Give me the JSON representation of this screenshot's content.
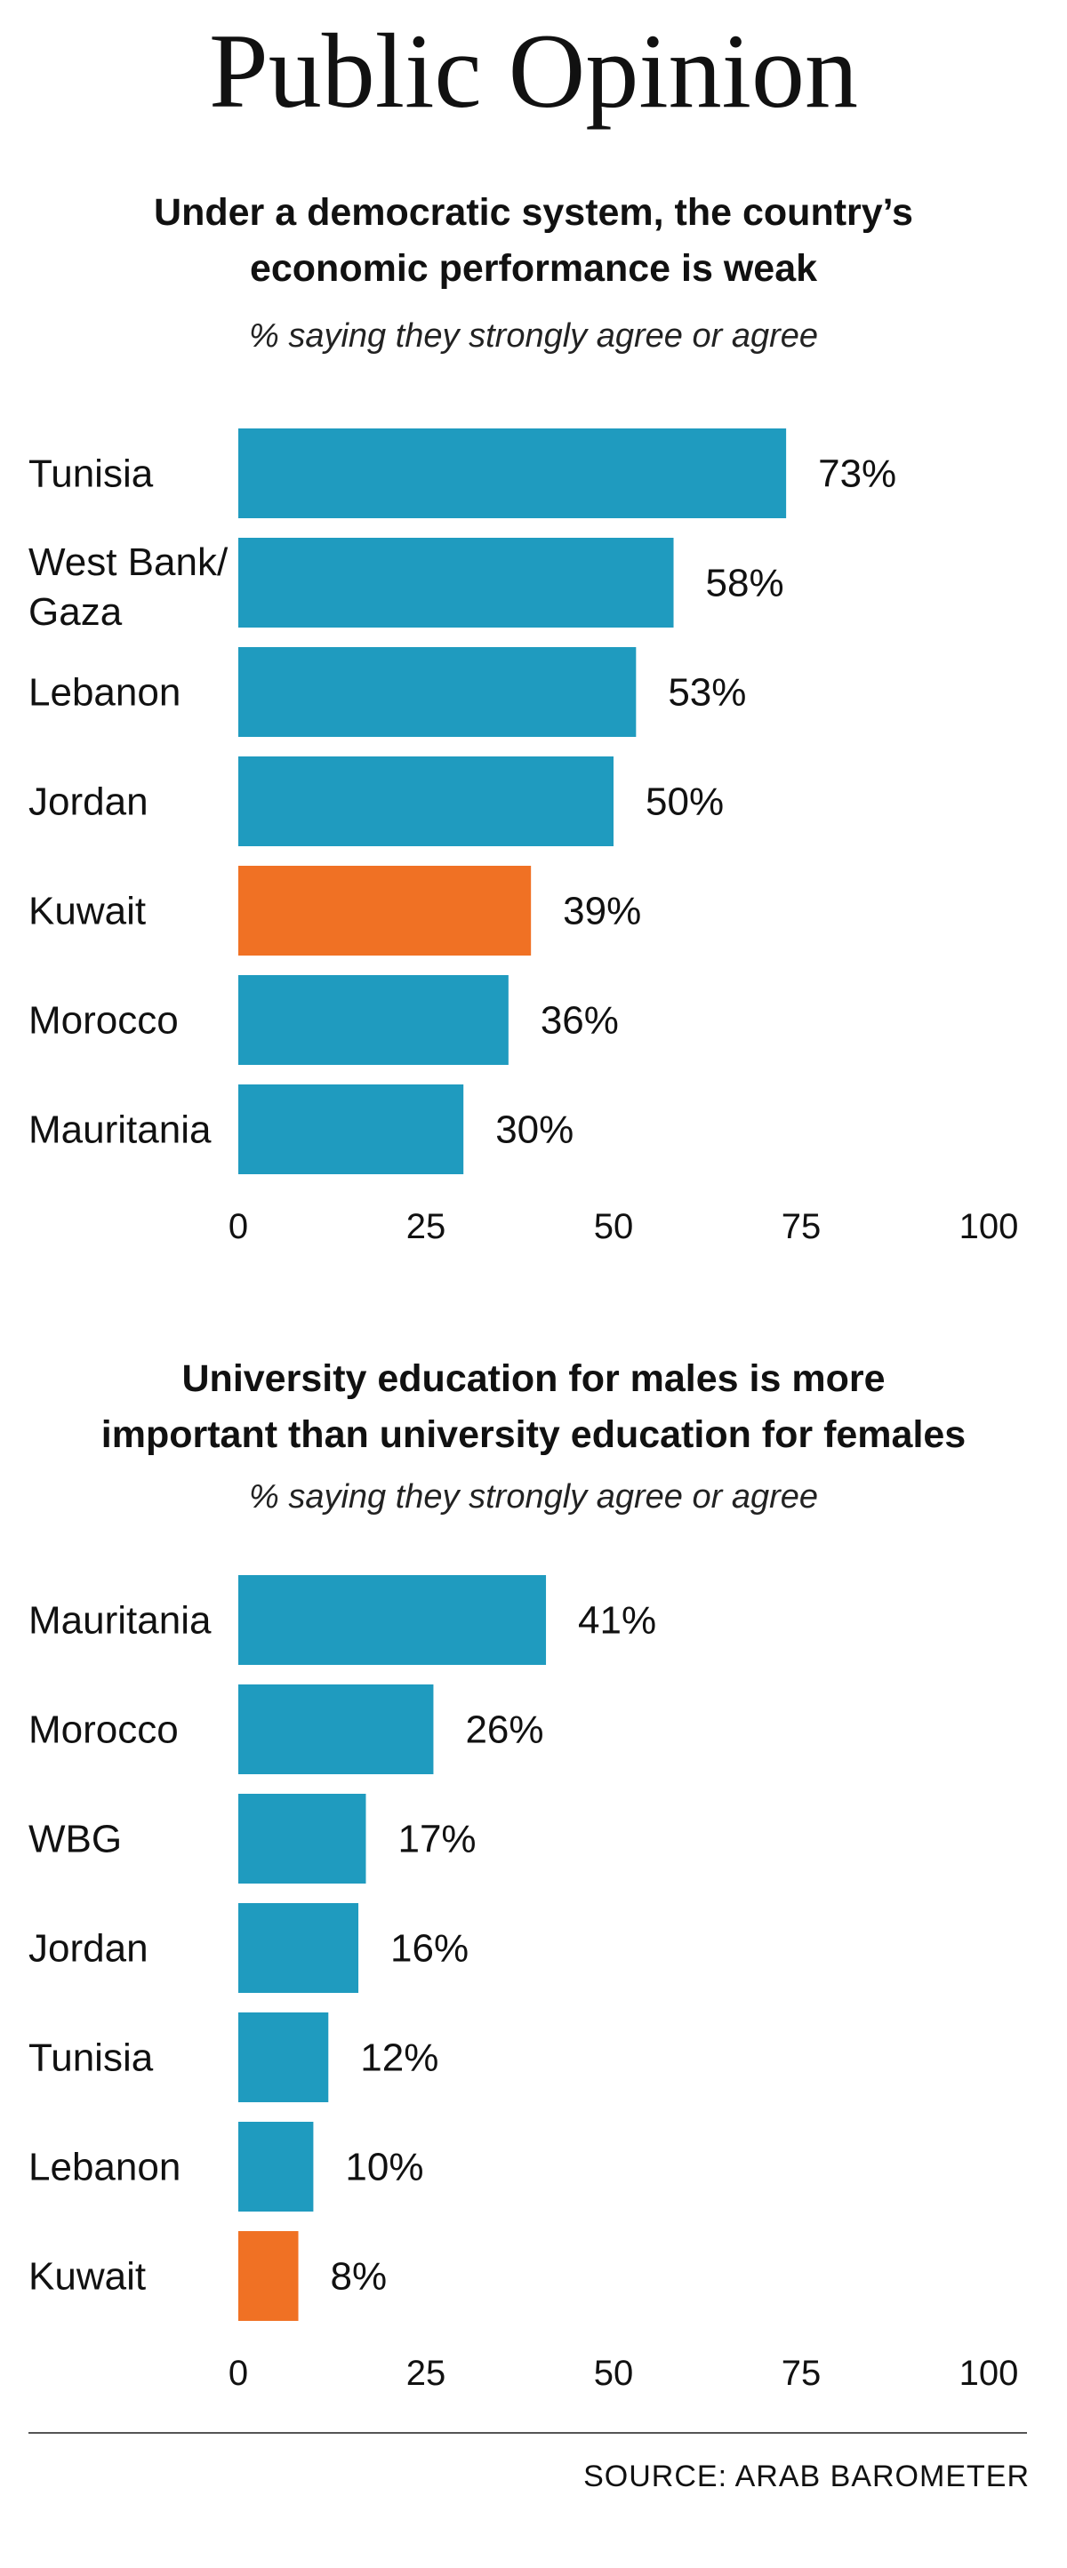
{
  "page_title": "Public Opinion",
  "source": "SOURCE: ARAB BAROMETER",
  "chart_data": [
    {
      "type": "bar",
      "orientation": "horizontal",
      "title": "Under a democratic system, the country’s economic performance is weak",
      "subtitle": "% saying they strongly agree or agree",
      "categories": [
        "Tunisia",
        "West Bank/\nGaza",
        "Lebanon",
        "Jordan",
        "Kuwait",
        "Morocco",
        "Mauritania"
      ],
      "values": [
        73,
        58,
        53,
        50,
        39,
        36,
        30
      ],
      "value_labels": [
        "73%",
        "58%",
        "53%",
        "50%",
        "39%",
        "36%",
        "30%"
      ],
      "highlight": "Kuwait",
      "xlim": [
        0,
        100
      ],
      "xticks": [
        0,
        25,
        50,
        75,
        100
      ],
      "grid": false,
      "colors": {
        "bar": "#1f9bbf",
        "highlight": "#f07124"
      }
    },
    {
      "type": "bar",
      "orientation": "horizontal",
      "title": "University education for males is more important than university education for females",
      "subtitle": "% saying they strongly agree or agree",
      "categories": [
        "Mauritania",
        "Morocco",
        "WBG",
        "Jordan",
        "Tunisia",
        "Lebanon",
        "Kuwait"
      ],
      "values": [
        41,
        26,
        17,
        16,
        12,
        10,
        8
      ],
      "value_labels": [
        "41%",
        "26%",
        "17%",
        "16%",
        "12%",
        "10%",
        "8%"
      ],
      "highlight": "Kuwait",
      "xlim": [
        0,
        100
      ],
      "xticks": [
        0,
        25,
        50,
        75,
        100
      ],
      "grid": false,
      "colors": {
        "bar": "#1f9bbf",
        "highlight": "#f07124"
      }
    }
  ]
}
